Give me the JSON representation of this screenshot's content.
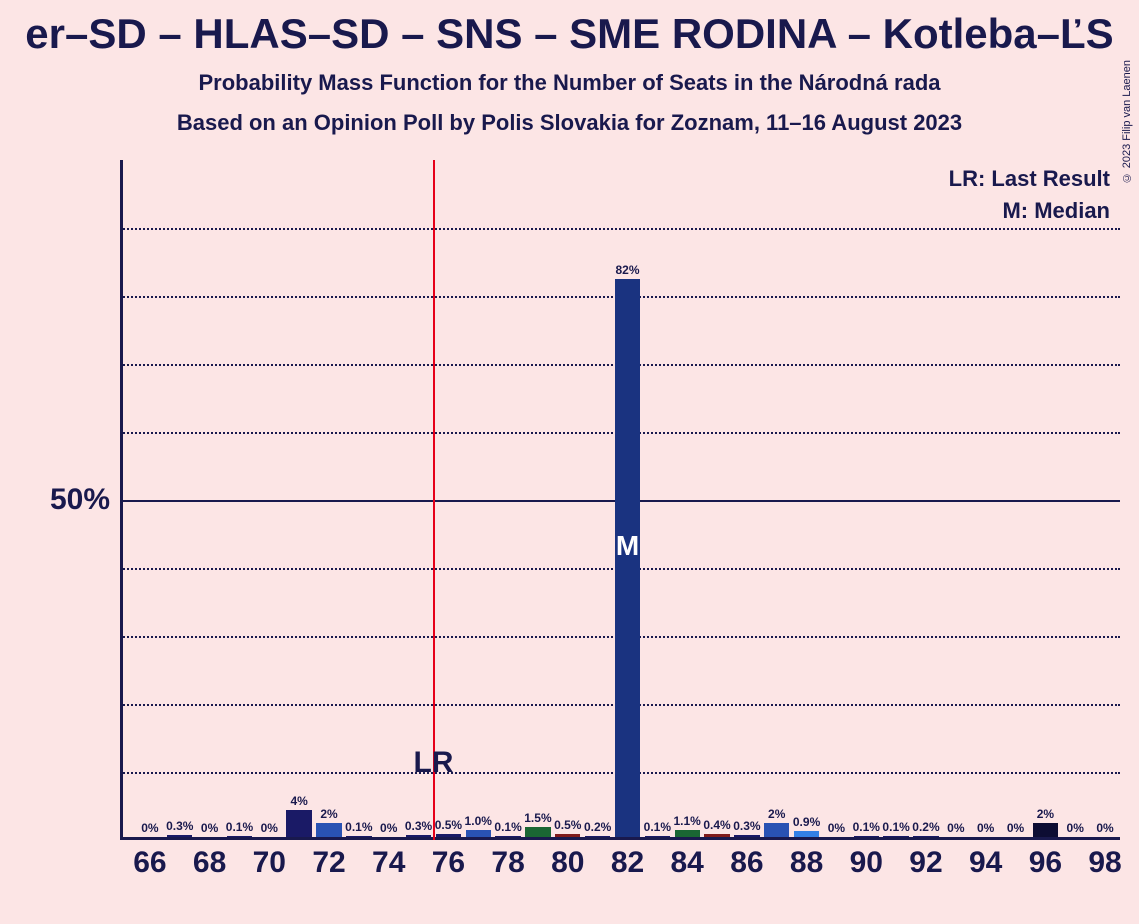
{
  "title": "er–SD – HLAS–SD – SNS – SME RODINA – Kotleba–ĽS",
  "subtitle1": "Probability Mass Function for the Number of Seats in the Národná rada",
  "subtitle2": "Based on an Opinion Poll by Polis Slovakia for Zoznam, 11–16 August 2023",
  "copyright": "© 2023 Filip van Laenen",
  "chart": {
    "type": "bar",
    "background_color": "#fce5e5",
    "text_color": "#19194d",
    "lr_line_color": "#e6001a",
    "ylim": [
      0,
      100
    ],
    "y_major": 50,
    "y_major_label": "50%",
    "y_minor_step": 10,
    "grid_style_minor": "dotted",
    "grid_style_major": "solid",
    "x_start": 66,
    "x_end": 98,
    "x_tick_step": 2,
    "x_ticks": [
      "66",
      "68",
      "70",
      "72",
      "74",
      "76",
      "78",
      "80",
      "82",
      "84",
      "86",
      "88",
      "90",
      "92",
      "94",
      "96",
      "98"
    ],
    "lr_position": 75.5,
    "lr_label": "LR",
    "median_position": 82,
    "median_label": "M",
    "legend_lr": "LR: Last Result",
    "legend_m": "M: Median",
    "bar_width": 0.85,
    "colors": {
      "navy": "#1a1a66",
      "blue": "#2952b3",
      "darkblue": "#1a3380",
      "green": "#1a6633",
      "red": "#801a1a",
      "lightblue": "#3380e6",
      "black": "#0d0d33"
    },
    "bars": [
      {
        "x": 66,
        "value": 0,
        "label": "0%",
        "color": "navy"
      },
      {
        "x": 67,
        "value": 0.3,
        "label": "0.3%",
        "color": "navy"
      },
      {
        "x": 68,
        "value": 0,
        "label": "0%",
        "color": "navy"
      },
      {
        "x": 69,
        "value": 0.1,
        "label": "0.1%",
        "color": "navy"
      },
      {
        "x": 70,
        "value": 0,
        "label": "0%",
        "color": "navy"
      },
      {
        "x": 71,
        "value": 4,
        "label": "4%",
        "color": "navy"
      },
      {
        "x": 72,
        "value": 2,
        "label": "2%",
        "color": "blue"
      },
      {
        "x": 73,
        "value": 0.1,
        "label": "0.1%",
        "color": "navy"
      },
      {
        "x": 74,
        "value": 0,
        "label": "0%",
        "color": "navy"
      },
      {
        "x": 75,
        "value": 0.3,
        "label": "0.3%",
        "color": "navy"
      },
      {
        "x": 76,
        "value": 0.5,
        "label": "0.5%",
        "color": "navy"
      },
      {
        "x": 77,
        "value": 1.0,
        "label": "1.0%",
        "color": "blue"
      },
      {
        "x": 78,
        "value": 0.1,
        "label": "0.1%",
        "color": "navy"
      },
      {
        "x": 79,
        "value": 1.5,
        "label": "1.5%",
        "color": "green"
      },
      {
        "x": 80,
        "value": 0.5,
        "label": "0.5%",
        "color": "red"
      },
      {
        "x": 81,
        "value": 0.2,
        "label": "0.2%",
        "color": "navy"
      },
      {
        "x": 82,
        "value": 82,
        "label": "82%",
        "color": "darkblue"
      },
      {
        "x": 83,
        "value": 0.1,
        "label": "0.1%",
        "color": "navy"
      },
      {
        "x": 84,
        "value": 1.1,
        "label": "1.1%",
        "color": "green"
      },
      {
        "x": 85,
        "value": 0.4,
        "label": "0.4%",
        "color": "red"
      },
      {
        "x": 86,
        "value": 0.3,
        "label": "0.3%",
        "color": "navy"
      },
      {
        "x": 87,
        "value": 2,
        "label": "2%",
        "color": "blue"
      },
      {
        "x": 88,
        "value": 0.9,
        "label": "0.9%",
        "color": "lightblue"
      },
      {
        "x": 89,
        "value": 0,
        "label": "0%",
        "color": "navy"
      },
      {
        "x": 90,
        "value": 0.1,
        "label": "0.1%",
        "color": "navy"
      },
      {
        "x": 91,
        "value": 0.1,
        "label": "0.1%",
        "color": "navy"
      },
      {
        "x": 92,
        "value": 0.2,
        "label": "0.2%",
        "color": "navy"
      },
      {
        "x": 93,
        "value": 0,
        "label": "0%",
        "color": "navy"
      },
      {
        "x": 94,
        "value": 0,
        "label": "0%",
        "color": "navy"
      },
      {
        "x": 95,
        "value": 0,
        "label": "0%",
        "color": "navy"
      },
      {
        "x": 96,
        "value": 2,
        "label": "2%",
        "color": "black"
      },
      {
        "x": 97,
        "value": 0,
        "label": "0%",
        "color": "navy"
      },
      {
        "x": 98,
        "value": 0,
        "label": "0%",
        "color": "navy"
      }
    ]
  }
}
